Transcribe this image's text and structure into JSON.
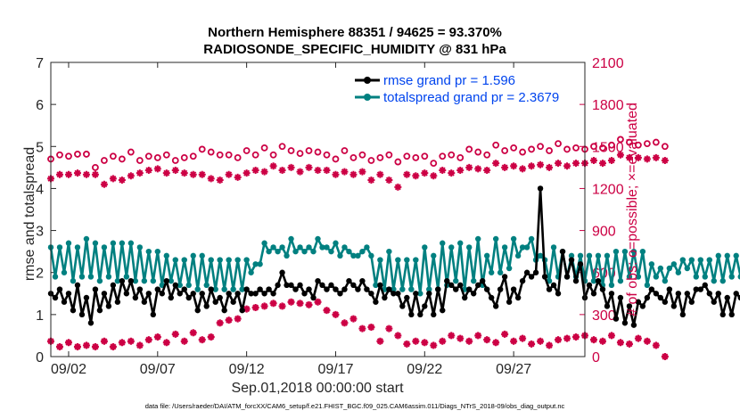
{
  "chart_data": {
    "type": "line",
    "title_line1": "Northern Hemisphere 88351 / 94625 = 93.370%",
    "title_line2": "RADIOSONDE_SPECIFIC_HUMIDITY @ 831 hPa",
    "xlabel": "Sep.01,2018 00:00:00 start",
    "ylabel_left": "rmse and totalspread",
    "ylabel_right": "# of obs: o=possible; ×=evaluated",
    "xlim": [
      1,
      31
    ],
    "ylim_left": [
      0,
      7
    ],
    "ylim_right": [
      0,
      2100
    ],
    "xticks": [
      {
        "value": 2,
        "label": "09/02"
      },
      {
        "value": 7,
        "label": "09/07"
      },
      {
        "value": 12,
        "label": "09/12"
      },
      {
        "value": 17,
        "label": "09/17"
      },
      {
        "value": 22,
        "label": "09/22"
      },
      {
        "value": 27,
        "label": "09/27"
      }
    ],
    "yticks_left": [
      "0",
      "1",
      "2",
      "3",
      "4",
      "5",
      "6",
      "7"
    ],
    "yticks_right": [
      "0",
      "300",
      "600",
      "900",
      "1200",
      "1500",
      "1800",
      "2100"
    ],
    "colors": {
      "rmse": "#000000",
      "spread": "#008080",
      "obs": "#cc0044",
      "legend_text": "#0044ee"
    },
    "legend": [
      {
        "name": "rmse grand pr = 1.596",
        "series": "rmse"
      },
      {
        "name": "totalspread grand pr = 2.3679",
        "series": "spread"
      }
    ],
    "series": [
      {
        "name": "rmse",
        "x_start": 1,
        "x_step": 0.25,
        "values": [
          1.5,
          1.4,
          1.6,
          1.3,
          1.5,
          1.1,
          1.7,
          1.0,
          1.4,
          0.8,
          1.6,
          1.1,
          1.5,
          1.2,
          1.7,
          1.3,
          1.8,
          1.5,
          1.8,
          1.4,
          1.6,
          1.3,
          1.5,
          1.0,
          1.6,
          1.5,
          1.8,
          1.4,
          1.7,
          1.5,
          1.6,
          1.4,
          1.5,
          1.1,
          1.5,
          1.2,
          1.6,
          1.3,
          1.4,
          1.1,
          1.5,
          1.3,
          1.5,
          1.1,
          1.6,
          1.5,
          1.5,
          1.6,
          1.5,
          1.6,
          1.5,
          1.7,
          2.0,
          1.7,
          1.7,
          1.6,
          1.7,
          1.5,
          1.6,
          1.4,
          1.8,
          1.7,
          1.6,
          1.7,
          1.6,
          1.5,
          1.6,
          1.8,
          1.7,
          1.6,
          1.8,
          1.6,
          1.5,
          1.3,
          1.7,
          1.4,
          1.6,
          1.5,
          1.5,
          1.2,
          1.4,
          1.0,
          1.5,
          1.0,
          1.2,
          1.5,
          1.0,
          1.6,
          1.1,
          1.8,
          1.7,
          1.6,
          1.7,
          1.4,
          1.6,
          1.5,
          1.7,
          1.8,
          1.6,
          1.4,
          1.2,
          1.6,
          1.9,
          1.3,
          1.6,
          1.4,
          1.8,
          2.0,
          1.9,
          2.0,
          4.0,
          1.9,
          1.6,
          1.7,
          1.5,
          2.5,
          1.9,
          2.3,
          1.8,
          2.2,
          1.4,
          1.7,
          1.5,
          1.8,
          1.6,
          1.2,
          1.5,
          0.9,
          1.4,
          0.8,
          1.2,
          0.75,
          1.3,
          1.2,
          1.4,
          1.6,
          1.5,
          1.4,
          1.3,
          1.6,
          1.2,
          1.5,
          1.0,
          1.5,
          1.3,
          1.6,
          1.6,
          1.7,
          1.5,
          1.3,
          1.5,
          1.0,
          1.4,
          1.0,
          1.5,
          1.4,
          1.5,
          1.5,
          1.6,
          1.6,
          1.9
        ]
      },
      {
        "name": "spread",
        "x_start": 1,
        "x_step": 0.25,
        "values": [
          2.6,
          1.9,
          2.6,
          2.0,
          2.7,
          1.8,
          2.6,
          1.9,
          2.8,
          1.9,
          2.7,
          1.8,
          2.6,
          1.9,
          2.7,
          1.8,
          2.7,
          1.9,
          2.7,
          1.8,
          2.6,
          1.8,
          2.5,
          1.8,
          2.5,
          1.7,
          2.4,
          1.8,
          2.3,
          1.7,
          2.3,
          1.7,
          2.4,
          1.6,
          2.4,
          1.7,
          2.3,
          1.6,
          2.3,
          1.6,
          2.3,
          1.6,
          2.3,
          1.6,
          2.3,
          2.0,
          2.2,
          2.2,
          2.7,
          2.5,
          2.6,
          2.5,
          2.6,
          2.4,
          2.8,
          2.5,
          2.6,
          2.5,
          2.6,
          2.5,
          2.8,
          2.6,
          2.6,
          2.5,
          2.7,
          2.4,
          2.6,
          2.5,
          2.4,
          2.4,
          2.5,
          2.6,
          2.4,
          1.7,
          2.3,
          1.6,
          2.5,
          1.6,
          2.3,
          1.6,
          2.3,
          1.6,
          2.3,
          1.5,
          2.6,
          1.6,
          2.4,
          1.6,
          2.7,
          1.7,
          2.6,
          1.8,
          2.7,
          1.6,
          2.6,
          1.8,
          2.8,
          1.7,
          2.4,
          2.0,
          2.8,
          2.0,
          2.6,
          2.1,
          2.8,
          2.4,
          2.6,
          2.6,
          2.8,
          2.3,
          2.4,
          2.3,
          1.8,
          2.6,
          1.9,
          2.5,
          1.9,
          2.4,
          1.9,
          2.4,
          1.8,
          2.4,
          1.8,
          2.4,
          1.7,
          2.4,
          1.7,
          2.5,
          1.8,
          2.5,
          1.9,
          2.5,
          1.9,
          2.5,
          1.7,
          2.2,
          1.9,
          2.1,
          1.8,
          2.1,
          2.2,
          2.0,
          2.3,
          2.1,
          2.3,
          1.9,
          2.3,
          1.9,
          2.3,
          1.8,
          2.4,
          1.8,
          2.4,
          1.9,
          2.4,
          1.9,
          2.4,
          2.0,
          2.5,
          2.1,
          2.2,
          1.9,
          1.9
        ]
      },
      {
        "name": "possible",
        "x_start": 1,
        "x_step": 0.5,
        "values": [
          1410,
          1440,
          1430,
          1445,
          1445,
          1350,
          1400,
          1430,
          1410,
          1460,
          1400,
          1430,
          1420,
          1440,
          1400,
          1420,
          1430,
          1480,
          1460,
          1440,
          1440,
          1420,
          1470,
          1440,
          1490,
          1440,
          1500,
          1470,
          1450,
          1470,
          1460,
          1440,
          1410,
          1470,
          1420,
          1440,
          1400,
          1420,
          1440,
          1390,
          1430,
          1420,
          1430,
          1380,
          1430,
          1440,
          1420,
          1480,
          1460,
          1440,
          1510,
          1470,
          1490,
          1460,
          1480,
          1500,
          1470,
          1520,
          1480,
          1490,
          1480,
          1500,
          1490,
          1510,
          1550,
          1530,
          1510,
          1520,
          1530,
          1500
        ]
      },
      {
        "name": "evaluated",
        "x_start": 1,
        "x_step": 0.5,
        "values": [
          1270,
          1300,
          1300,
          1310,
          1300,
          1300,
          1230,
          1270,
          1260,
          1290,
          1310,
          1330,
          1340,
          1310,
          1330,
          1310,
          1300,
          1300,
          1270,
          1260,
          1300,
          1280,
          1310,
          1330,
          1320,
          1360,
          1330,
          1350,
          1320,
          1350,
          1330,
          1330,
          1300,
          1320,
          1300,
          1320,
          1260,
          1300,
          1260,
          1210,
          1300,
          1290,
          1310,
          1290,
          1330,
          1310,
          1330,
          1350,
          1340,
          1330,
          1380,
          1350,
          1360,
          1340,
          1360,
          1370,
          1350,
          1380,
          1360,
          1380,
          1380,
          1400,
          1380,
          1400,
          1440,
          1420,
          1420,
          1410,
          1420,
          1400
        ]
      },
      {
        "name": "possible_low",
        "x_start": 1,
        "x_step": 0.5,
        "values": [
          110,
          70,
          100,
          70,
          80,
          70,
          110,
          70,
          100,
          110,
          80,
          120,
          140,
          100,
          160,
          110,
          170,
          120,
          140,
          240,
          260,
          270,
          340,
          350,
          360,
          380,
          360,
          390,
          380,
          370,
          390,
          330,
          300,
          240,
          270,
          200,
          210,
          110,
          200,
          150,
          90,
          110,
          100,
          80,
          110,
          150,
          130,
          110,
          150,
          120,
          100,
          160,
          110,
          130,
          90,
          110,
          80,
          120,
          130,
          140,
          150,
          120,
          110,
          150,
          100,
          90,
          130,
          110,
          80,
          0
        ]
      }
    ]
  },
  "footer": "data file: /Users/raeder/DAI/ATM_forcXX/CAM6_setup/f.e21.FHIST_BGC.f09_025.CAM6assim.011/Diags_NTrS_2018-09/obs_diag_output.nc"
}
